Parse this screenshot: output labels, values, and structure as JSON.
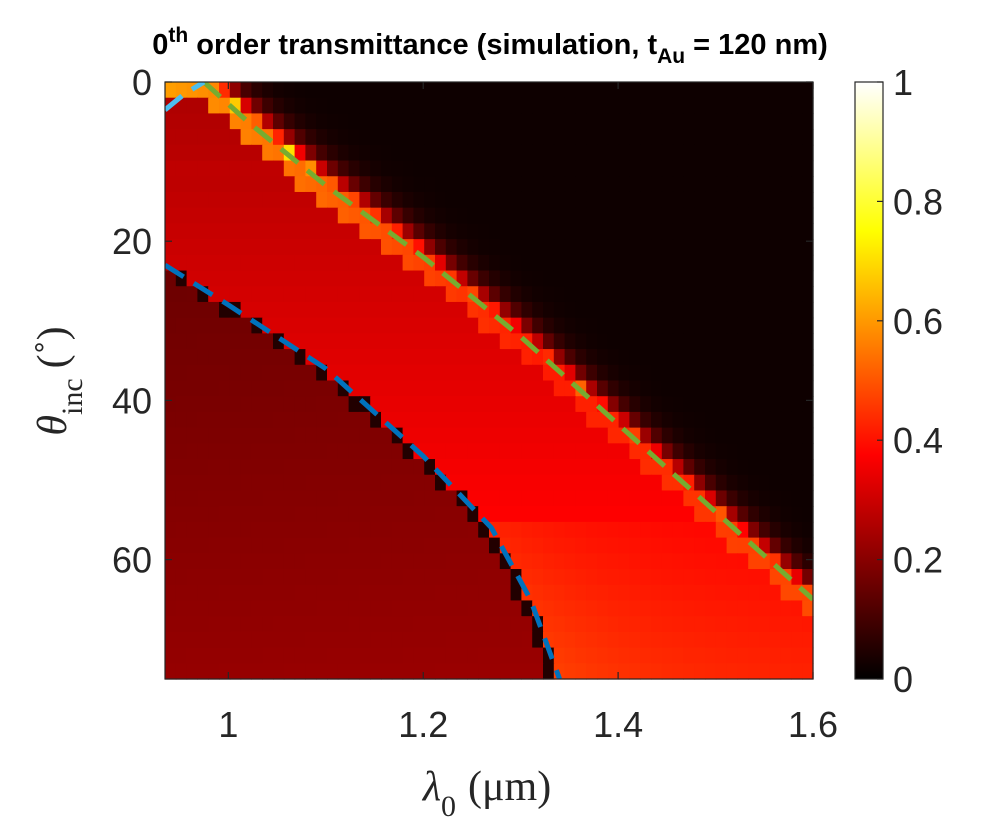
{
  "chart_data": {
    "type": "heatmap",
    "title": {
      "main": "0",
      "sup": "th",
      "rest": " order transmittance (simulation, t",
      "sub": "Au",
      "tail": " = 120 nm)"
    },
    "xlabel": {
      "symbol": "λ",
      "sub": "0",
      "unit": "(μm)"
    },
    "ylabel": {
      "symbol": "θ",
      "sub": "inc",
      "unit": "(˚)"
    },
    "xlim": [
      0.935,
      1.6
    ],
    "ylim": [
      0,
      75
    ],
    "y_reversed": true,
    "grid": false,
    "x_ticks": [
      1,
      1.2,
      1.4,
      1.6
    ],
    "x_tick_labels": [
      "1",
      "1.2",
      "1.4",
      "1.6"
    ],
    "y_ticks": [
      0,
      20,
      40,
      60
    ],
    "y_tick_labels": [
      "0",
      "20",
      "40",
      "60"
    ],
    "colorbar": {
      "colormap": "hot",
      "range": [
        0,
        1
      ],
      "ticks": [
        0,
        0.2,
        0.4,
        0.6,
        0.8,
        1
      ],
      "tick_labels": [
        "0",
        "0.2",
        "0.4",
        "0.6",
        "0.8",
        "1"
      ]
    },
    "resolution": {
      "nx": 60,
      "ny": 38
    },
    "overlays": [
      {
        "name": "Rayleigh anomaly (green dashed)",
        "color": "#77AC30",
        "style": "dashed",
        "points": [
          [
            0.975,
            0
          ],
          [
            1.02,
            5
          ],
          [
            1.1,
            13
          ],
          [
            1.2,
            22
          ],
          [
            1.3,
            32
          ],
          [
            1.4,
            43
          ],
          [
            1.5,
            54
          ],
          [
            1.6,
            65
          ]
        ]
      },
      {
        "name": "Rayleigh anomaly (blue dashed)",
        "color": "#0072BD",
        "style": "dashed",
        "points": [
          [
            0.935,
            23
          ],
          [
            1.0,
            28
          ],
          [
            1.1,
            36
          ],
          [
            1.2,
            47
          ],
          [
            1.27,
            56
          ],
          [
            1.31,
            65
          ],
          [
            1.34,
            75
          ]
        ]
      },
      {
        "name": "Rayleigh anomaly (light blue dashed, top-left)",
        "color": "#4DBEEE",
        "style": "dashed",
        "points": [
          [
            0.935,
            3.5
          ],
          [
            0.955,
            1.5
          ],
          [
            0.975,
            0
          ]
        ]
      }
    ]
  }
}
